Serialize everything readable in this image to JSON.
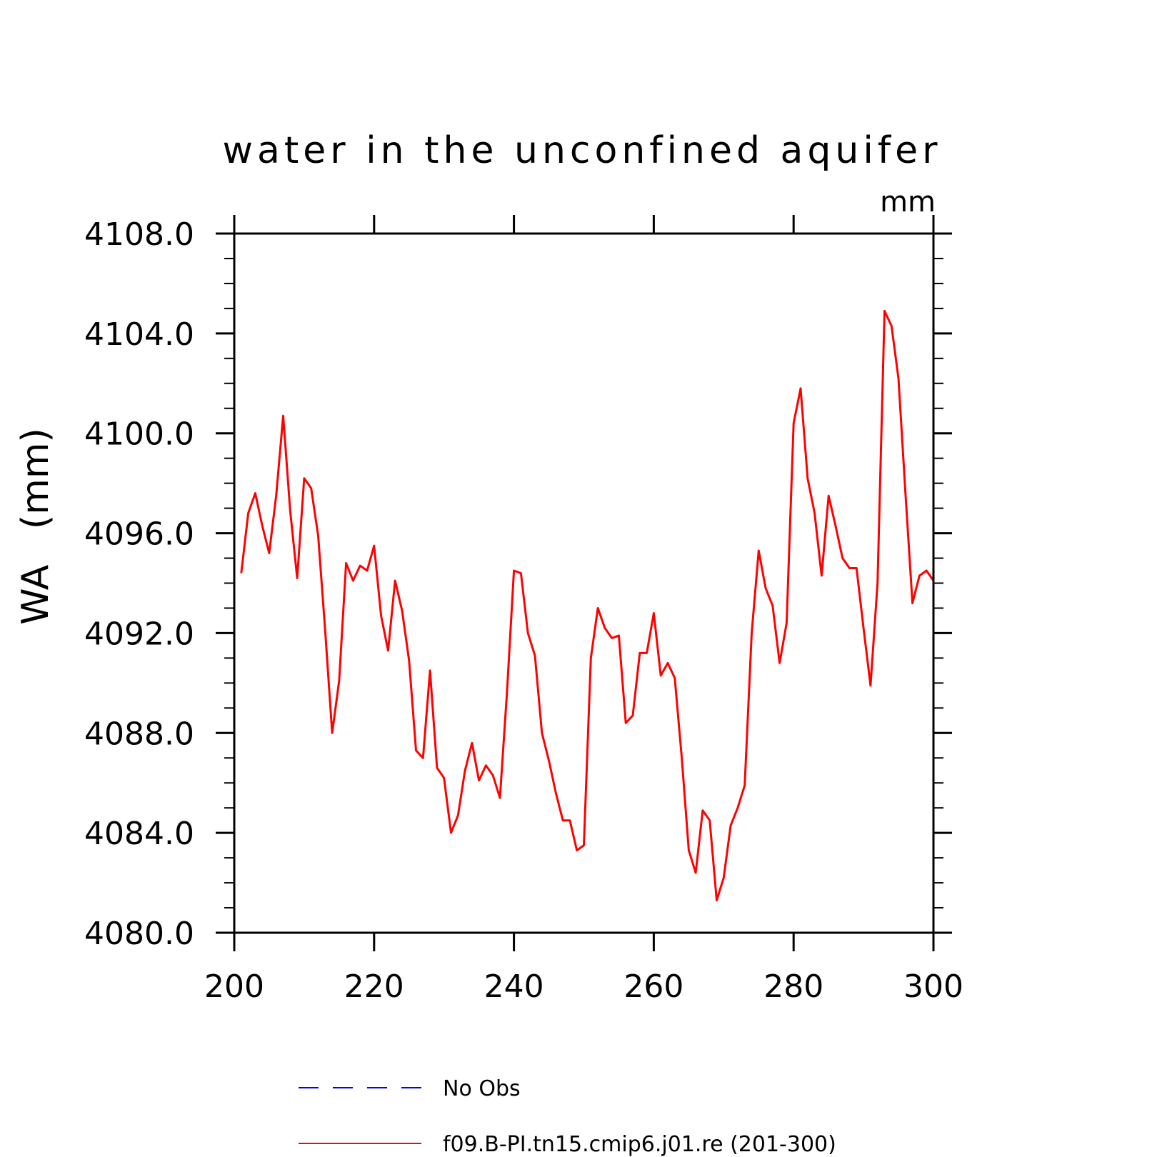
{
  "chart_data": {
    "type": "line",
    "title": "water in the unconfined aquifer",
    "units": "mm",
    "ylabel": "WA   (mm)",
    "xlabel": "",
    "xlim": [
      200,
      300
    ],
    "ylim": [
      4080,
      4108
    ],
    "x_ticks": [
      "200",
      "220",
      "240",
      "260",
      "280",
      "300"
    ],
    "y_ticks": [
      "4080.0",
      "4084.0",
      "4088.0",
      "4092.0",
      "4096.0",
      "4100.0",
      "4104.0",
      "4108.0"
    ],
    "legend": [
      {
        "label": "No Obs",
        "color": "#0000ff",
        "style": "dashed"
      },
      {
        "label": "f09.B-PI.tn15.cmip6.j01.re (201-300)",
        "color": "#ff0000",
        "style": "solid"
      }
    ],
    "series": [
      {
        "name": "f09.B-PI.tn15.cmip6.j01.re (201-300)",
        "color": "#ff0000",
        "x": [
          201,
          202,
          203,
          204,
          205,
          206,
          207,
          208,
          209,
          210,
          211,
          212,
          213,
          214,
          215,
          216,
          217,
          218,
          219,
          220,
          221,
          222,
          223,
          224,
          225,
          226,
          227,
          228,
          229,
          230,
          231,
          232,
          233,
          234,
          235,
          236,
          237,
          238,
          239,
          240,
          241,
          242,
          243,
          244,
          245,
          246,
          247,
          248,
          249,
          250,
          251,
          252,
          253,
          254,
          255,
          256,
          257,
          258,
          259,
          260,
          261,
          262,
          263,
          264,
          265,
          266,
          267,
          268,
          269,
          270,
          271,
          272,
          273,
          274,
          275,
          276,
          277,
          278,
          279,
          280,
          281,
          282,
          283,
          284,
          285,
          286,
          287,
          288,
          289,
          290,
          291,
          292,
          293,
          294,
          295,
          296,
          297,
          298,
          299,
          300
        ],
        "y": [
          4094.4,
          4096.8,
          4097.6,
          4096.3,
          4095.2,
          4097.5,
          4100.7,
          4096.9,
          4094.2,
          4098.2,
          4097.8,
          4095.9,
          4092.1,
          4088.0,
          4090.1,
          4094.8,
          4094.1,
          4094.7,
          4094.5,
          4095.5,
          4092.7,
          4091.3,
          4094.1,
          4092.9,
          4090.9,
          4087.3,
          4087.0,
          4090.5,
          4086.6,
          4086.2,
          4084.0,
          4084.7,
          4086.5,
          4087.6,
          4086.1,
          4086.7,
          4086.3,
          4085.4,
          4089.6,
          4094.5,
          4094.4,
          4092.0,
          4091.1,
          4088.0,
          4086.9,
          4085.6,
          4084.5,
          4084.5,
          4083.3,
          4083.5,
          4091.0,
          4093.0,
          4092.2,
          4091.8,
          4091.9,
          4088.4,
          4088.7,
          4091.2,
          4091.2,
          4092.8,
          4090.3,
          4090.8,
          4090.2,
          4087.0,
          4083.3,
          4082.4,
          4084.9,
          4084.5,
          4081.3,
          4082.2,
          4084.3,
          4085.0,
          4085.9,
          4092.0,
          4095.3,
          4093.8,
          4093.1,
          4090.8,
          4092.4,
          4100.4,
          4101.8,
          4098.2,
          4096.8,
          4094.3,
          4097.5,
          4096.3,
          4095.0,
          4094.6,
          4094.6,
          4092.2,
          4089.9,
          4094.0,
          4104.9,
          4104.3,
          4102.2,
          4097.6,
          4093.2,
          4094.3,
          4094.5,
          4094.1
        ]
      }
    ]
  }
}
